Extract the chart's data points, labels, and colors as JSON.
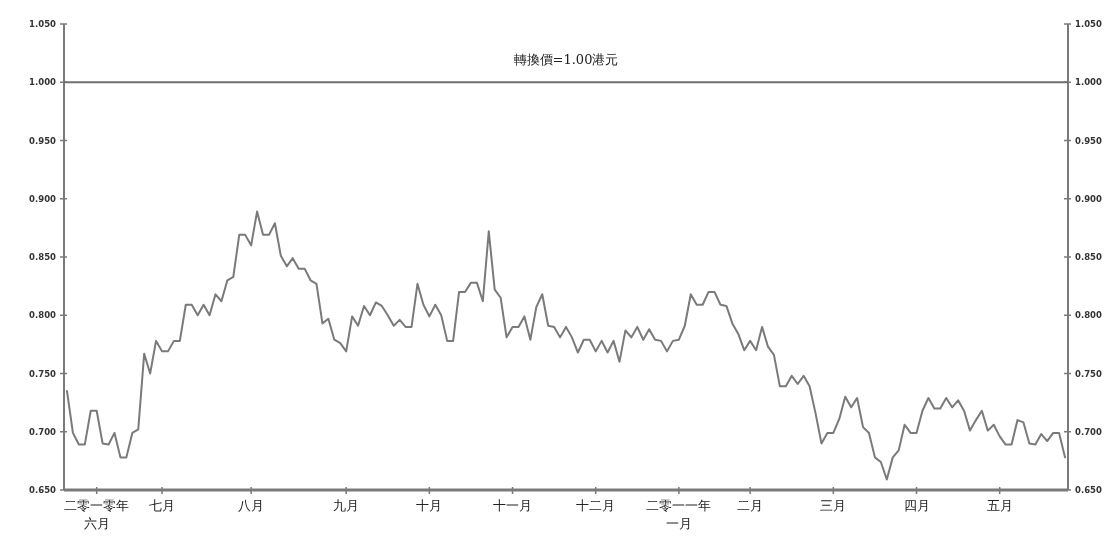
{
  "chart_data": {
    "type": "line",
    "categories": [
      null,
      null,
      null,
      null,
      null,
      "二零一零年六月",
      null,
      null,
      null,
      null,
      null,
      null,
      null,
      null,
      null,
      null,
      "七月",
      null,
      null,
      null,
      null,
      null,
      null,
      null,
      null,
      null,
      null,
      null,
      null,
      null,
      null,
      "八月",
      null,
      null,
      null,
      null,
      null,
      null,
      null,
      null,
      null,
      null,
      null,
      null,
      null,
      null,
      null,
      "九月",
      null,
      null,
      null,
      null,
      null,
      null,
      null,
      null,
      null,
      null,
      null,
      null,
      null,
      "十月",
      null,
      null,
      null,
      null,
      null,
      null,
      null,
      null,
      null,
      null,
      null,
      null,
      null,
      "十一月",
      null,
      null,
      null,
      null,
      null,
      null,
      null,
      null,
      null,
      null,
      null,
      null,
      null,
      "十二月",
      null,
      null,
      null,
      null,
      null,
      null,
      null,
      null,
      null,
      null,
      null,
      null,
      null,
      "二零一一年一月",
      null,
      null,
      null,
      null,
      null,
      null,
      null,
      null,
      null,
      null,
      null,
      "二月",
      null,
      null,
      null,
      null,
      null,
      null,
      null,
      null,
      null,
      null,
      null,
      null,
      null,
      "三月",
      null,
      null,
      null,
      null,
      null,
      null,
      null,
      null,
      null,
      null,
      null,
      null,
      null,
      "四月",
      null,
      null,
      null,
      null,
      null,
      null,
      null,
      null,
      null,
      null,
      null,
      null,
      null,
      "五月",
      null,
      null,
      null,
      null,
      null,
      null,
      null,
      null,
      null,
      null,
      null
    ],
    "series": [
      {
        "color": "#7a7a7a",
        "values": [
          0.735,
          0.699,
          0.689,
          0.689,
          0.718,
          0.718,
          0.69,
          0.689,
          0.699,
          0.678,
          0.678,
          0.699,
          0.702,
          0.767,
          0.75,
          0.778,
          0.769,
          0.769,
          0.778,
          0.778,
          0.809,
          0.809,
          0.8,
          0.809,
          0.8,
          0.818,
          0.812,
          0.83,
          0.833,
          0.869,
          0.869,
          0.86,
          0.889,
          0.869,
          0.869,
          0.879,
          0.851,
          0.842,
          0.849,
          0.84,
          0.84,
          0.83,
          0.827,
          0.793,
          0.797,
          0.779,
          0.776,
          0.769,
          0.799,
          0.791,
          0.808,
          0.8,
          0.811,
          0.808,
          0.8,
          0.791,
          0.796,
          0.79,
          0.79,
          0.827,
          0.809,
          0.799,
          0.809,
          0.8,
          0.778,
          0.778,
          0.82,
          0.82,
          0.828,
          0.828,
          0.812,
          0.872,
          0.822,
          0.815,
          0.781,
          0.79,
          0.79,
          0.799,
          0.779,
          0.807,
          0.818,
          0.791,
          0.79,
          0.781,
          0.79,
          0.781,
          0.768,
          0.779,
          0.779,
          0.769,
          0.778,
          0.768,
          0.778,
          0.76,
          0.787,
          0.781,
          0.79,
          0.779,
          0.788,
          0.779,
          0.778,
          0.769,
          0.778,
          0.779,
          0.791,
          0.818,
          0.809,
          0.809,
          0.82,
          0.82,
          0.809,
          0.808,
          0.793,
          0.784,
          0.77,
          0.778,
          0.77,
          0.79,
          0.773,
          0.766,
          0.739,
          0.739,
          0.748,
          0.741,
          0.748,
          0.739,
          0.716,
          0.69,
          0.699,
          0.699,
          0.711,
          0.73,
          0.721,
          0.729,
          0.704,
          0.699,
          0.678,
          0.674,
          0.659,
          0.678,
          0.684,
          0.706,
          0.699,
          0.699,
          0.718,
          0.729,
          0.72,
          0.72,
          0.729,
          0.721,
          0.727,
          0.718,
          0.701,
          0.71,
          0.718,
          0.701,
          0.706,
          0.696,
          0.689,
          0.689,
          0.71,
          0.708,
          0.69,
          0.689,
          0.698,
          0.692,
          0.699,
          0.699,
          0.678
        ]
      }
    ],
    "ylim": [
      0.65,
      1.05
    ],
    "yticks": [
      {
        "value": 0.65,
        "label": "0.650"
      },
      {
        "value": 0.7,
        "label": "0.700"
      },
      {
        "value": 0.75,
        "label": "0.750"
      },
      {
        "value": 0.8,
        "label": "0.800"
      },
      {
        "value": 0.85,
        "label": "0.850"
      },
      {
        "value": 0.9,
        "label": "0.900"
      },
      {
        "value": 0.95,
        "label": "0.950"
      },
      {
        "value": 1.0,
        "label": "1.000"
      },
      {
        "value": 1.05,
        "label": "1.050"
      }
    ],
    "y2lim": [
      0.65,
      1.05
    ],
    "y2ticks": [
      {
        "value": 0.65,
        "label": "0.650"
      },
      {
        "value": 0.7,
        "label": "0.700"
      },
      {
        "value": 0.75,
        "label": "0.750"
      },
      {
        "value": 0.8,
        "label": "0.800"
      },
      {
        "value": 0.85,
        "label": "0.850"
      },
      {
        "value": 0.9,
        "label": "0.900"
      },
      {
        "value": 0.95,
        "label": "0.950"
      },
      {
        "value": 1.0,
        "label": "1.000"
      },
      {
        "value": 1.05,
        "label": "1.050"
      }
    ],
    "ref_lines": [
      {
        "axis": "y",
        "value": 1.0,
        "label": "轉換價=1.00港元",
        "color": "#707070"
      }
    ]
  }
}
